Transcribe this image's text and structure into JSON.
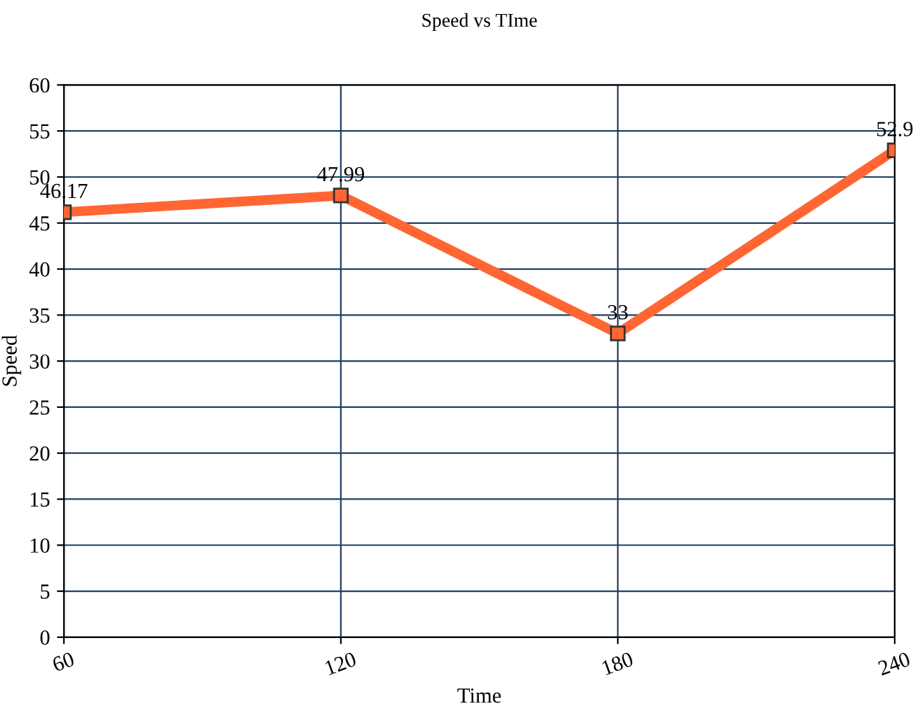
{
  "chart_data": {
    "type": "line",
    "title": "Speed vs TIme",
    "xlabel": "Time",
    "ylabel": "Speed",
    "x": [
      60,
      120,
      180,
      240
    ],
    "series": [
      {
        "color": "#ff6633",
        "values": [
          46.17,
          47.99,
          33,
          52.9
        ]
      }
    ],
    "xlim": [
      60,
      240
    ],
    "xticks": [
      60,
      120,
      180,
      240
    ],
    "ylim": [
      0,
      60
    ],
    "yticks": [
      0,
      5,
      10,
      15,
      20,
      25,
      30,
      35,
      40,
      45,
      50,
      55,
      60
    ],
    "grid": true,
    "marker": "square",
    "line_style": "solid",
    "data_labels": true
  }
}
